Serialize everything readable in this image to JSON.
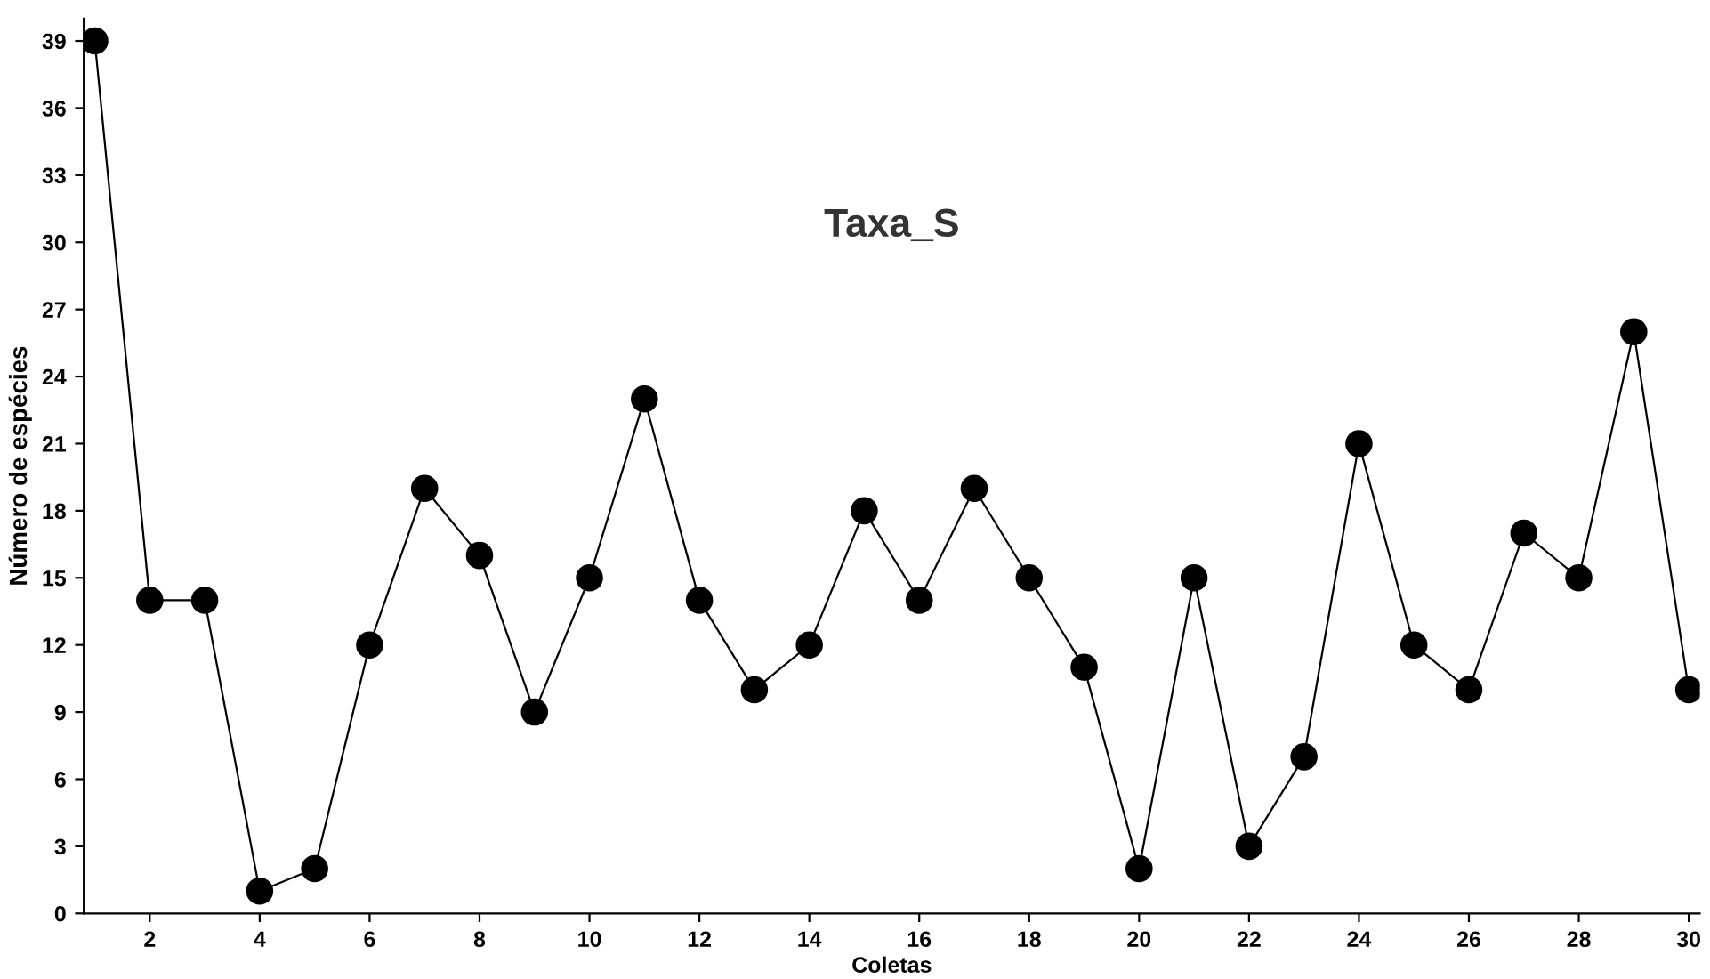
{
  "chart_data": {
    "type": "line",
    "title": "Taxa_S",
    "xlabel": "Coletas",
    "ylabel": "Número de espécies",
    "x": [
      1,
      2,
      3,
      4,
      5,
      6,
      7,
      8,
      9,
      10,
      11,
      12,
      13,
      14,
      15,
      16,
      17,
      18,
      19,
      20,
      21,
      22,
      23,
      24,
      25,
      26,
      27,
      28,
      29,
      30
    ],
    "series": [
      {
        "color": "#000000",
        "values": [
          39,
          14,
          14,
          1,
          2,
          12,
          19,
          16,
          9,
          15,
          23,
          14,
          10,
          12,
          18,
          14,
          19,
          15,
          11,
          2,
          15,
          3,
          7,
          21,
          12,
          10,
          17,
          15,
          26,
          10
        ]
      }
    ],
    "xlim": [
      0.8,
      30.2
    ],
    "ylim": [
      0,
      40
    ],
    "xticks": [
      2,
      4,
      6,
      8,
      10,
      12,
      14,
      16,
      18,
      20,
      22,
      24,
      26,
      28,
      30
    ],
    "yticks": [
      0,
      3,
      6,
      9,
      12,
      15,
      18,
      21,
      24,
      27,
      30,
      33,
      36,
      39
    ],
    "marker": "circle",
    "line_style": "solid",
    "grid": false,
    "legend": false
  }
}
